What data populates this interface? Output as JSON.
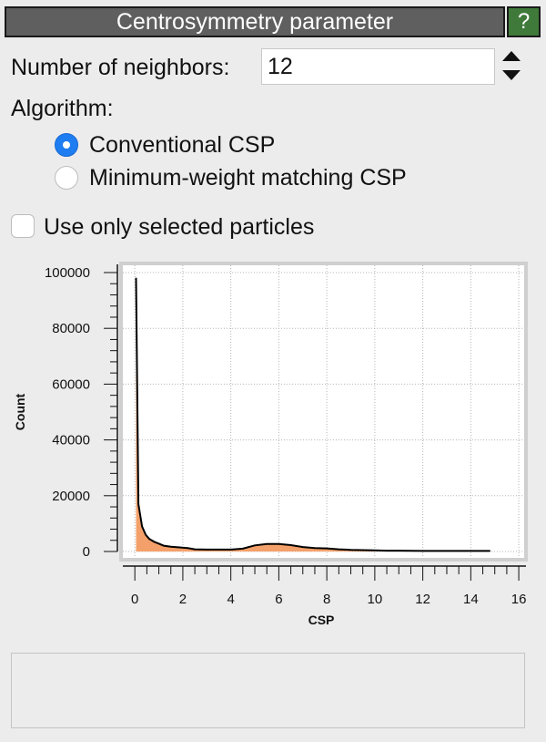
{
  "header": {
    "title": "Centrosymmetry parameter",
    "help_label": "?"
  },
  "neighbors": {
    "label": "Number of neighbors:",
    "value": "12"
  },
  "algorithm": {
    "label": "Algorithm:",
    "options": [
      {
        "label": "Conventional CSP",
        "selected": true
      },
      {
        "label": "Minimum-weight matching CSP",
        "selected": false
      }
    ]
  },
  "selection": {
    "label": "Use only selected particles",
    "checked": false
  },
  "colors": {
    "fill": "#f4a06a",
    "line": "#000000",
    "radio_accent": "#1f7df2",
    "help_button": "#3f7a3a",
    "title_bar": "#5f5f5f"
  },
  "chart_data": {
    "type": "area",
    "xlabel": "CSP",
    "ylabel": "Count",
    "xlim": [
      -0.5,
      16.3
    ],
    "ylim": [
      0,
      100000
    ],
    "x_ticks": [
      "0",
      "2",
      "4",
      "6",
      "8",
      "10",
      "12",
      "14",
      "16"
    ],
    "y_ticks": [
      "0",
      "20000",
      "40000",
      "60000",
      "80000",
      "100000"
    ],
    "grid": true,
    "x": [
      0.05,
      0.15,
      0.3,
      0.45,
      0.6,
      0.8,
      1.0,
      1.2,
      1.5,
      1.8,
      2.2,
      2.5,
      3.0,
      3.5,
      4.0,
      4.5,
      5.0,
      5.5,
      6.0,
      6.5,
      7.0,
      7.5,
      8.0,
      8.5,
      9.0,
      9.5,
      10.0,
      10.5,
      11.0,
      12.0,
      13.0,
      14.0,
      14.8
    ],
    "values": [
      98000,
      17000,
      9000,
      6000,
      4500,
      3500,
      2800,
      2100,
      1700,
      1500,
      1200,
      800,
      700,
      700,
      700,
      1000,
      2200,
      2700,
      2700,
      2300,
      1600,
      1200,
      1100,
      800,
      600,
      500,
      400,
      300,
      300,
      200,
      200,
      200,
      200
    ]
  }
}
